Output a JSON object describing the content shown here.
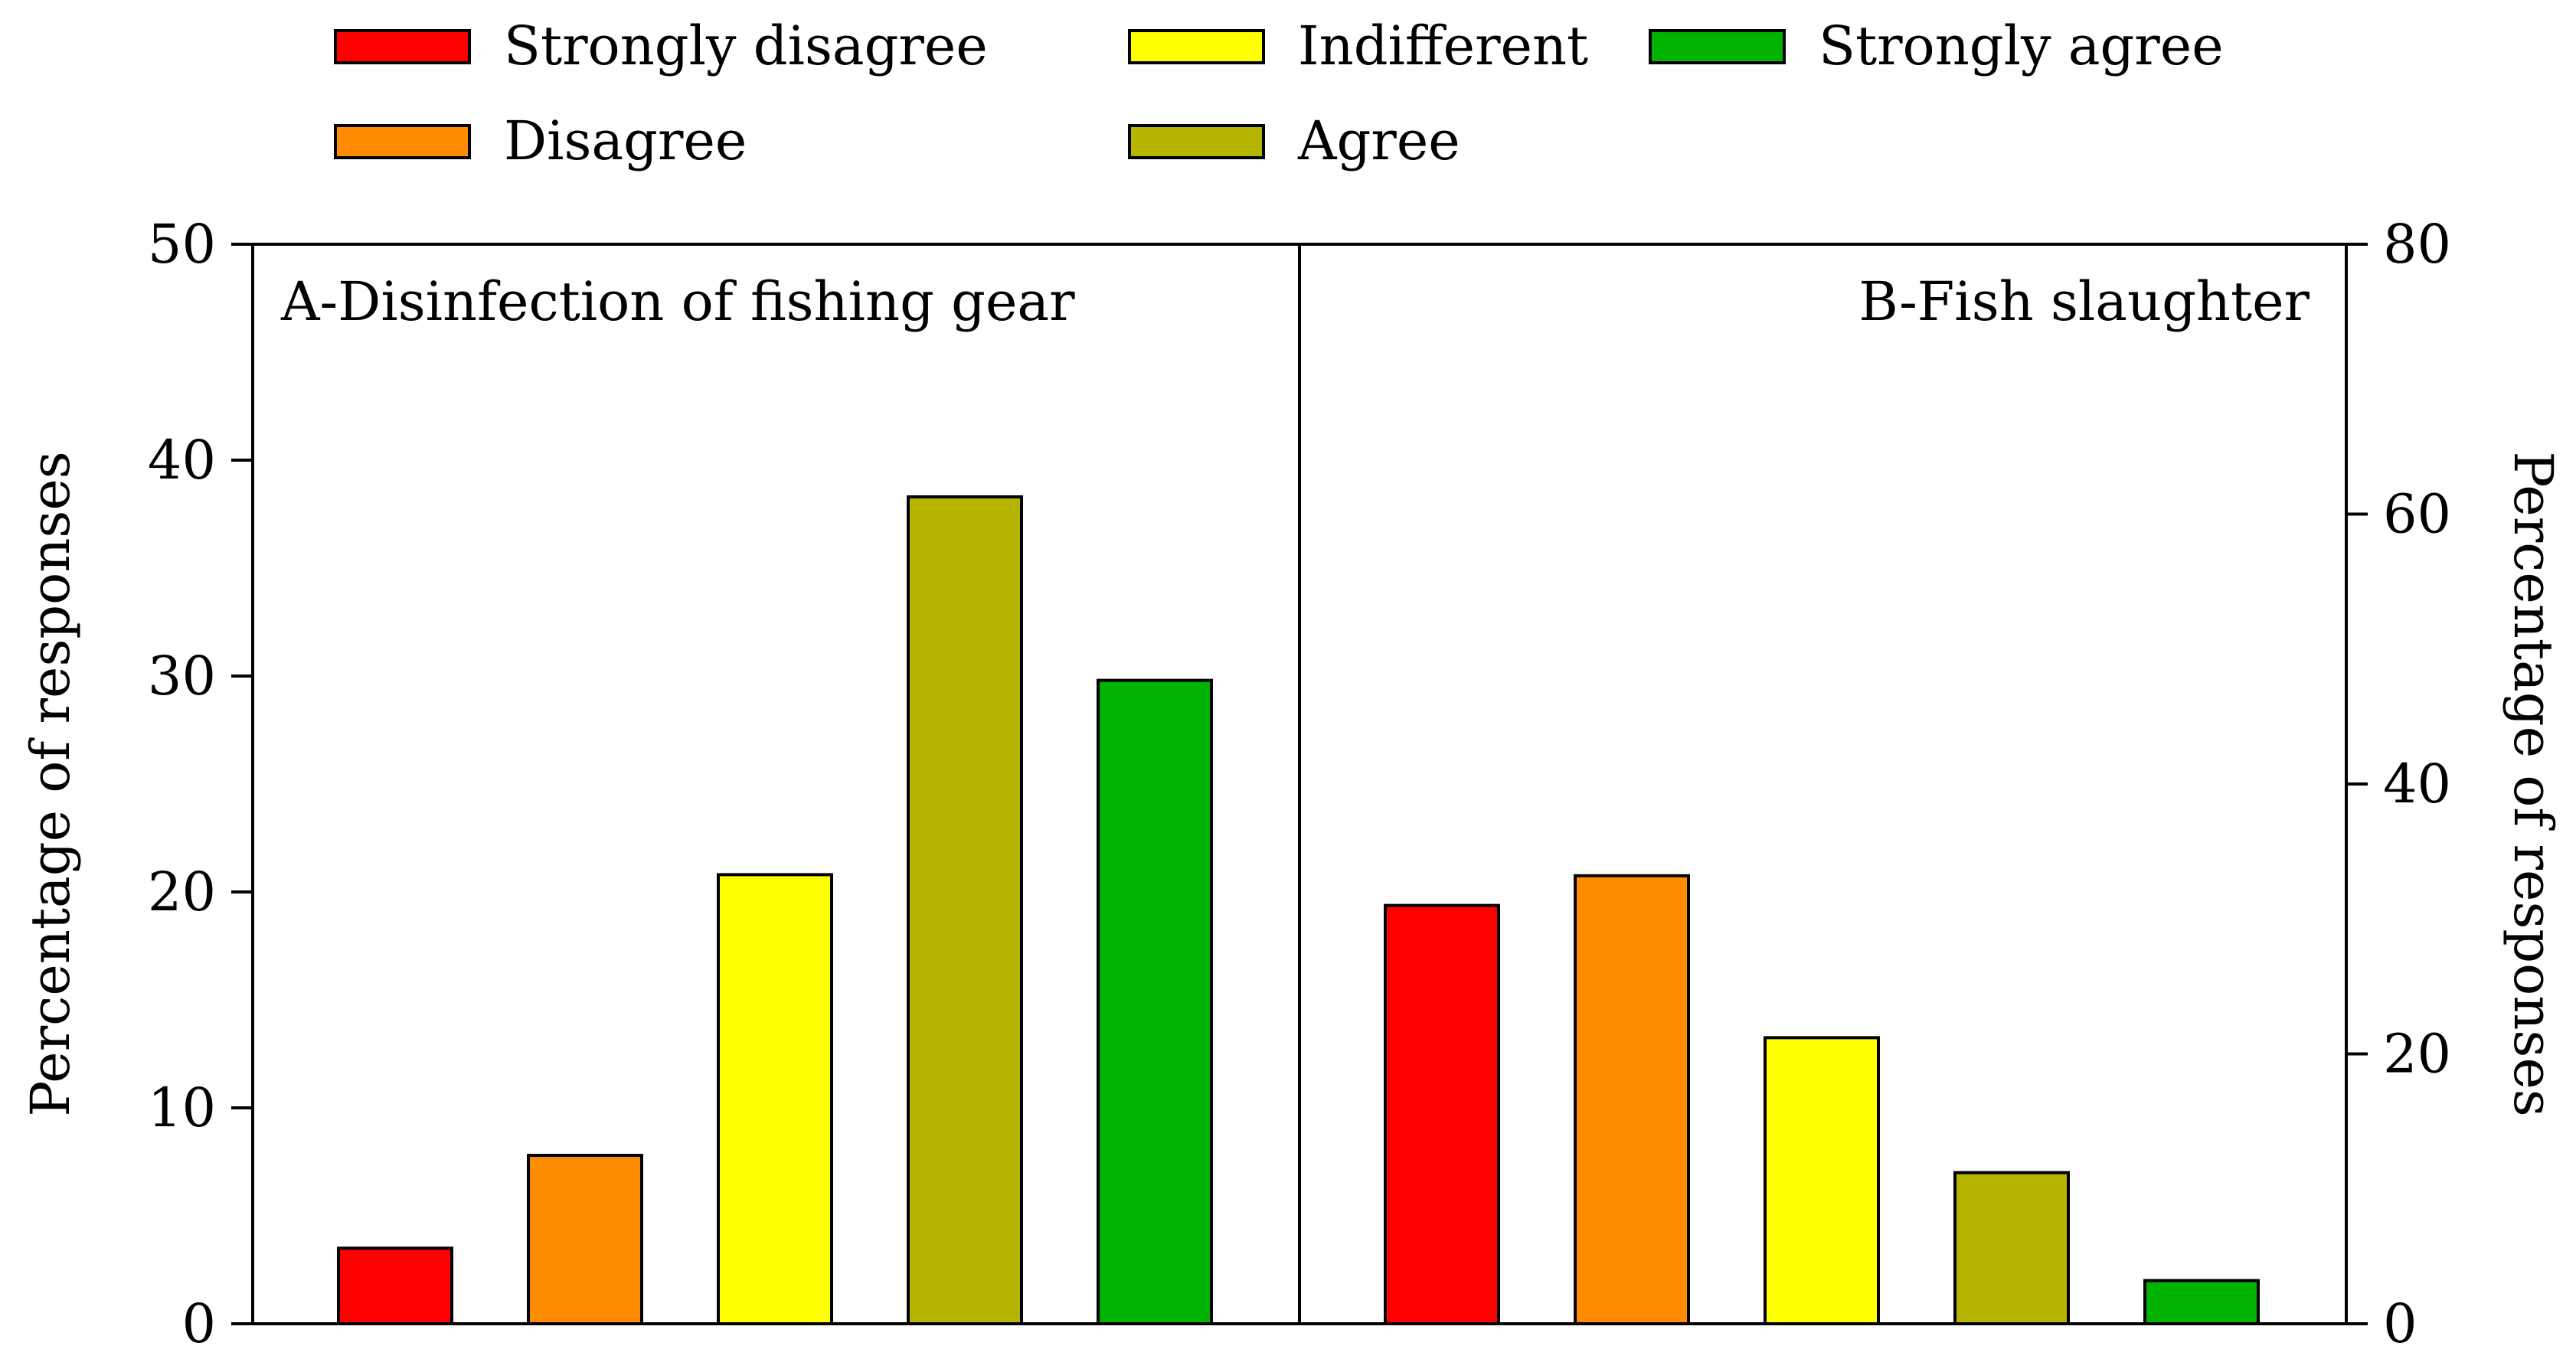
{
  "chart_data": {
    "type": "bar",
    "categories": [
      "Strongly disagree",
      "Disagree",
      "Indifferent",
      "Agree",
      "Strongly agree"
    ],
    "colors": [
      "#ff0000",
      "#ff8c00",
      "#ffff00",
      "#b5b500",
      "#00b300"
    ],
    "legend": {
      "placement": "top",
      "entries": [
        "Strongly disagree",
        "Disagree",
        "Indifferent",
        "Agree",
        "Strongly agree"
      ]
    },
    "panels": [
      {
        "title": "A-Disinfection of fishing gear",
        "axis_side": "left",
        "ylabel": "Percentage of responses",
        "ylim": [
          0,
          50
        ],
        "yticks": [
          0,
          10,
          20,
          30,
          40,
          50
        ],
        "values": [
          3.5,
          7.8,
          20.8,
          38.3,
          29.8
        ]
      },
      {
        "title": "B-Fish slaughter",
        "axis_side": "right",
        "ylabel": "Percentage of responses",
        "ylim": [
          0,
          80
        ],
        "yticks": [
          0,
          20,
          40,
          60,
          80
        ],
        "values": [
          31.0,
          33.2,
          21.2,
          11.2,
          3.2
        ]
      }
    ]
  }
}
